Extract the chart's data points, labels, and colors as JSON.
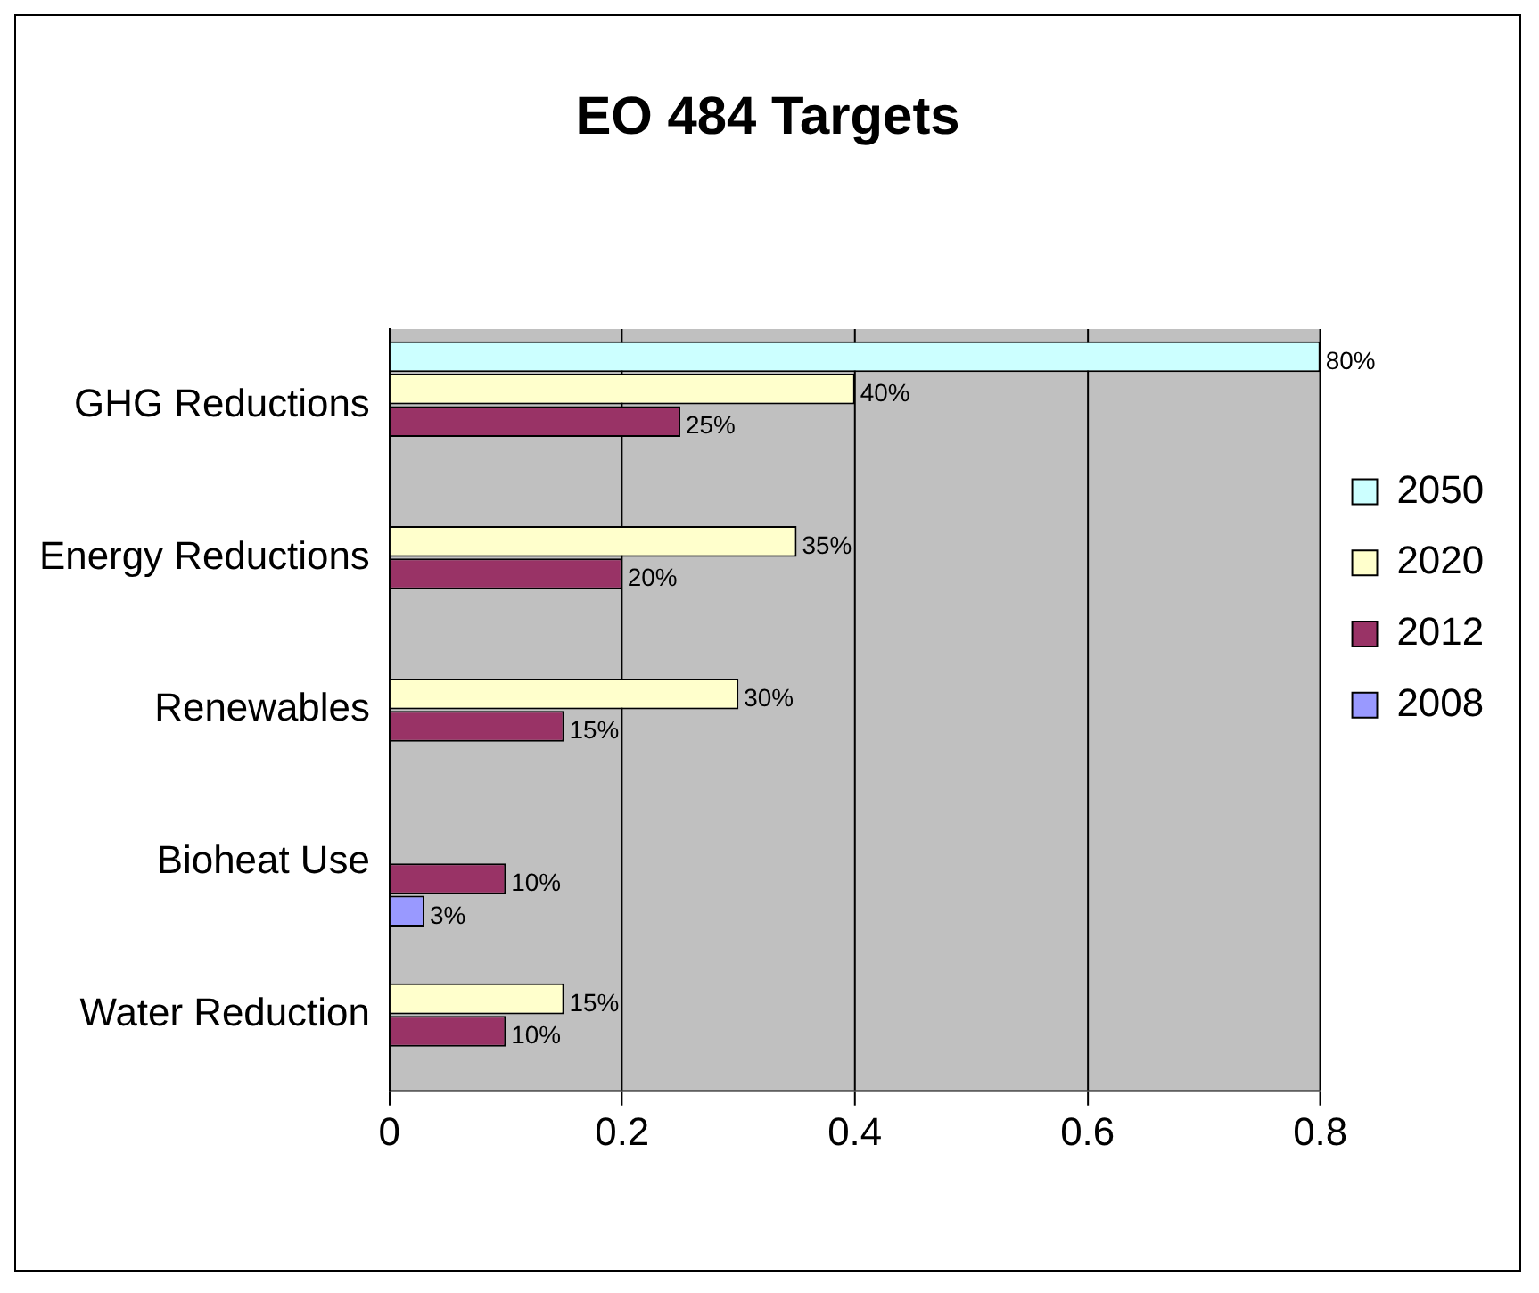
{
  "chart_data": {
    "type": "bar",
    "orientation": "horizontal",
    "title": "EO 484 Targets",
    "categories": [
      "GHG Reductions",
      "Energy Reductions",
      "Renewables",
      "Bioheat Use",
      "Water Reduction"
    ],
    "series": [
      {
        "name": "2050",
        "color": "#ccffff",
        "values": [
          0.8,
          null,
          null,
          null,
          null
        ],
        "value_labels": [
          "80%",
          null,
          null,
          null,
          null
        ]
      },
      {
        "name": "2020",
        "color": "#ffffcc",
        "values": [
          0.4,
          0.35,
          0.3,
          null,
          0.15
        ],
        "value_labels": [
          "40%",
          "35%",
          "30%",
          null,
          "15%"
        ]
      },
      {
        "name": "2012",
        "color": "#993366",
        "values": [
          0.25,
          0.2,
          0.15,
          0.1,
          0.1
        ],
        "value_labels": [
          "25%",
          "20%",
          "15%",
          "10%",
          "10%"
        ]
      },
      {
        "name": "2008",
        "color": "#9999ff",
        "values": [
          null,
          null,
          null,
          0.03,
          null
        ],
        "value_labels": [
          null,
          null,
          null,
          "3%",
          null
        ]
      }
    ],
    "xlim": [
      0,
      0.8
    ],
    "xticks": [
      0,
      0.2,
      0.4,
      0.6,
      0.8
    ],
    "grid": "x",
    "legend": "right"
  }
}
